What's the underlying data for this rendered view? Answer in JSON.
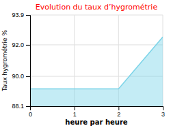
{
  "chart_data": {
    "type": "area",
    "title": "Evolution du taux d’hygrométrie",
    "xlabel": "heure par heure",
    "ylabel": "Taux hygrométrie %",
    "x": [
      0,
      2,
      3
    ],
    "values": [
      89.2,
      89.2,
      92.5
    ],
    "color": "#7dd4e8",
    "xlim": [
      0,
      3
    ],
    "ylim": [
      88.1,
      93.9
    ],
    "xticks": [
      0,
      1,
      2,
      3
    ],
    "yticks": [
      88.1,
      {
        "value": 90.0,
        "label": "90.0"
      },
      {
        "value": 92.0,
        "label": "92.0"
      },
      93.9
    ],
    "grid": true
  }
}
